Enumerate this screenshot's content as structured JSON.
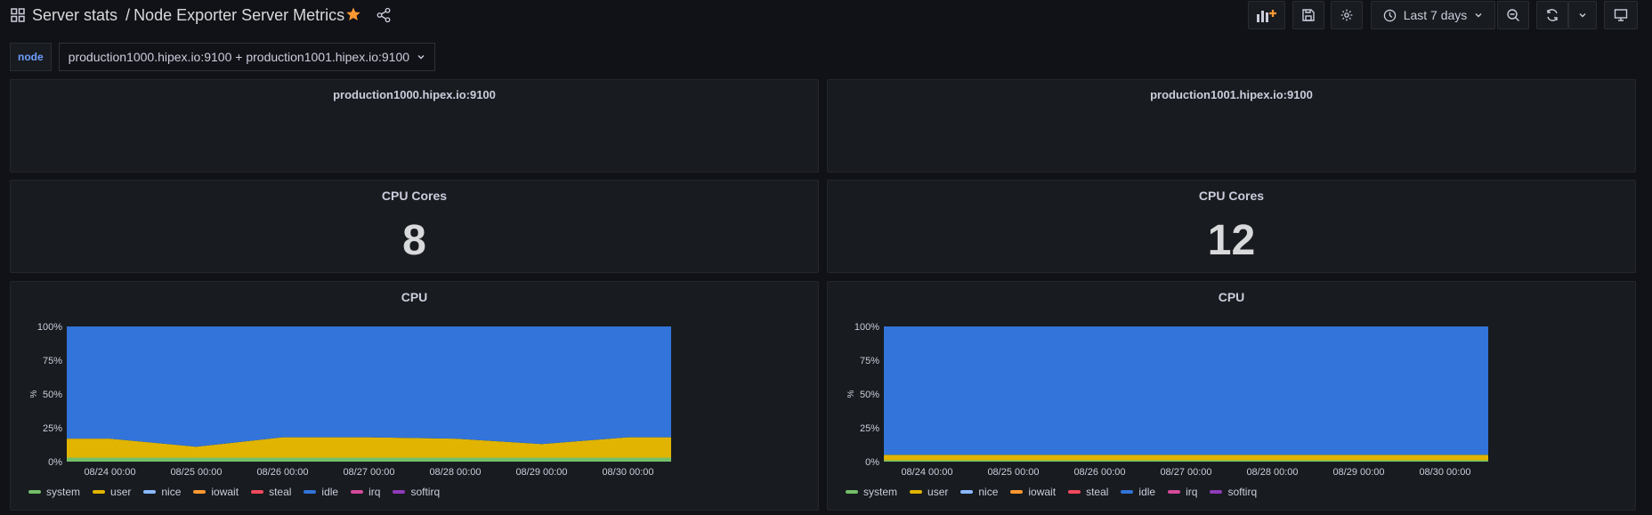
{
  "header": {
    "folder": "Server stats",
    "separator": "/",
    "dashboard": "Node Exporter Server Metrics",
    "time_range": "Last 7 days"
  },
  "icons": {
    "grid": "apps-grid-icon",
    "star": "star-icon",
    "share": "share-icon",
    "add_panel": "add-panel-icon",
    "save": "save-icon",
    "settings": "gear-icon",
    "clock": "clock-icon",
    "zoom_out": "zoom-out-icon",
    "refresh": "refresh-icon",
    "tv": "tv-mode-icon"
  },
  "variables": {
    "label": "node",
    "value": "production1000.hipex.io:9100 + production1001.hipex.io:9100"
  },
  "rows": [
    {
      "title": "production1000.hipex.io:9100",
      "cores_title": "CPU Cores",
      "cores_value": "8",
      "cpu_title": "CPU"
    },
    {
      "title": "production1001.hipex.io:9100",
      "cores_title": "CPU Cores",
      "cores_value": "12",
      "cpu_title": "CPU"
    }
  ],
  "colors": {
    "idle": "#3274d9",
    "user": "#e0b400",
    "system": "#73bf69",
    "nice": "#8ab8ff",
    "iowait": "#ff9830",
    "steal": "#f2495c",
    "irq": "#d44a9a",
    "softirq": "#8f3bb8",
    "star": "#ff9830"
  },
  "chart_data": [
    {
      "type": "area",
      "stacked": true,
      "title": "CPU",
      "ylabel": "%",
      "ylim": [
        0,
        100
      ],
      "y_ticks": [
        "0%",
        "25%",
        "50%",
        "75%",
        "100%"
      ],
      "x": [
        "08/24 00:00",
        "08/25 00:00",
        "08/26 00:00",
        "08/27 00:00",
        "08/28 00:00",
        "08/29 00:00",
        "08/30 00:00"
      ],
      "series": [
        {
          "name": "system",
          "values": [
            3,
            3,
            3,
            3,
            3,
            3,
            3
          ]
        },
        {
          "name": "user",
          "values": [
            14,
            8,
            15,
            15,
            14,
            10,
            15
          ]
        },
        {
          "name": "nice",
          "values": [
            0,
            0,
            0,
            0,
            0,
            0,
            0
          ]
        },
        {
          "name": "iowait",
          "values": [
            0,
            0,
            0,
            0,
            0,
            0,
            0
          ]
        },
        {
          "name": "steal",
          "values": [
            0,
            0,
            0,
            0,
            0,
            0,
            0
          ]
        },
        {
          "name": "idle",
          "values": [
            83,
            89,
            82,
            82,
            83,
            87,
            82
          ]
        },
        {
          "name": "irq",
          "values": [
            0,
            0,
            0,
            0,
            0,
            0,
            0
          ]
        },
        {
          "name": "softirq",
          "values": [
            0,
            0,
            0,
            0,
            0,
            0,
            0
          ]
        }
      ],
      "legend": [
        "system",
        "user",
        "nice",
        "iowait",
        "steal",
        "idle",
        "irq",
        "softirq"
      ]
    },
    {
      "type": "area",
      "stacked": true,
      "title": "CPU",
      "ylabel": "%",
      "ylim": [
        0,
        100
      ],
      "y_ticks": [
        "0%",
        "25%",
        "50%",
        "75%",
        "100%"
      ],
      "x": [
        "08/24 00:00",
        "08/25 00:00",
        "08/26 00:00",
        "08/27 00:00",
        "08/28 00:00",
        "08/29 00:00",
        "08/30 00:00"
      ],
      "series": [
        {
          "name": "system",
          "values": [
            1,
            1,
            1,
            1,
            1,
            1,
            1
          ]
        },
        {
          "name": "user",
          "values": [
            4,
            4,
            4,
            4,
            4,
            4,
            4
          ]
        },
        {
          "name": "nice",
          "values": [
            0,
            0,
            0,
            0,
            0,
            0,
            0
          ]
        },
        {
          "name": "iowait",
          "values": [
            0,
            0,
            0,
            0,
            0,
            0,
            0
          ]
        },
        {
          "name": "steal",
          "values": [
            0,
            0,
            0,
            0,
            0,
            0,
            0
          ]
        },
        {
          "name": "idle",
          "values": [
            95,
            95,
            95,
            95,
            95,
            95,
            95
          ]
        },
        {
          "name": "irq",
          "values": [
            0,
            0,
            0,
            0,
            0,
            0,
            0
          ]
        },
        {
          "name": "softirq",
          "values": [
            0,
            0,
            0,
            0,
            0,
            0,
            0
          ]
        }
      ],
      "legend": [
        "system",
        "user",
        "nice",
        "iowait",
        "steal",
        "idle",
        "irq",
        "softirq"
      ]
    }
  ]
}
